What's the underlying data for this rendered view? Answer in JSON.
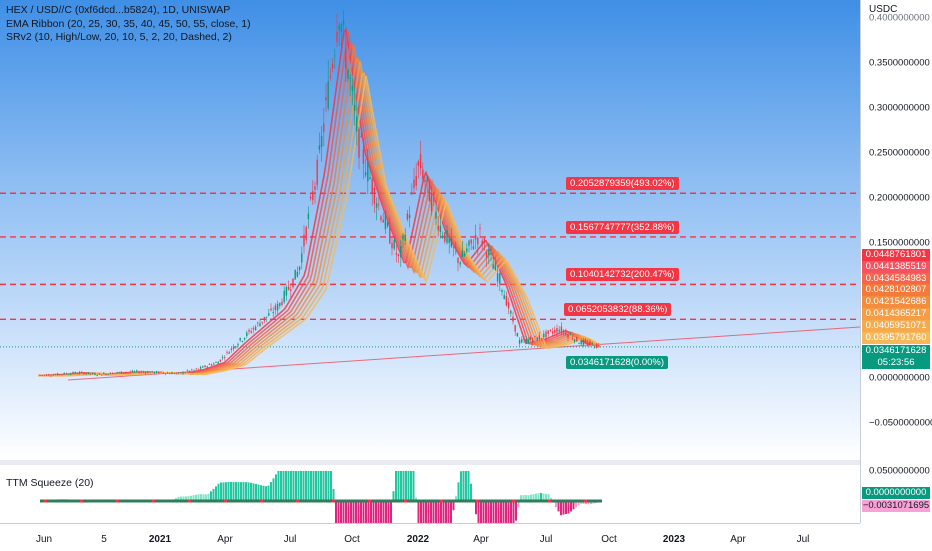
{
  "legend": {
    "symbol": "HEX / USD//C (0xf6dcd...b5824), 1D, UNISWAP",
    "ema": "EMA Ribbon (20, 25, 30, 35, 40, 45, 50, 55, close, 1)",
    "srv2": "SRv2 (10, High/Low, 20, 10, 5, 2, 20, Dashed, 2)"
  },
  "ttm": {
    "title": "TTM Squeeze (20)"
  },
  "price_axis": {
    "unit": "USDC",
    "ticks": [
      "0.4000000000",
      "0.3500000000",
      "0.3000000000",
      "0.2500000000",
      "0.2000000000",
      "0.1500000000",
      "0.0000000000",
      "−0.0500000000"
    ],
    "ttm_ticks": [
      "0.0500000000"
    ]
  },
  "price_tags": [
    {
      "label": "0.0448761801",
      "color": "#f23645"
    },
    {
      "label": "0.0441385519",
      "color": "#f7525f"
    },
    {
      "label": "0.0434584983",
      "color": "#f6664a"
    },
    {
      "label": "0.0428102807",
      "color": "#f47a3c"
    },
    {
      "label": "0.0421542686",
      "color": "#f48c3f"
    },
    {
      "label": "0.0414365217",
      "color": "#f59c45"
    },
    {
      "label": "0.0405951071",
      "color": "#f6aa4e"
    },
    {
      "label": "0.0395791760",
      "color": "#f7b85a"
    },
    {
      "label": "0.0346171628",
      "color": "#089981"
    },
    {
      "label": "05:23:56",
      "color": "#089981"
    }
  ],
  "ttm_tags": [
    {
      "label": "0.0000000000",
      "color": "#089981"
    },
    {
      "label": "−0.0031071695",
      "color": "#f7a1d6"
    }
  ],
  "sr_levels": [
    {
      "label": "0.2052879359(493.02%)",
      "value": 0.2052879359,
      "color": "#f23645"
    },
    {
      "label": "0.1567747777(352.88%)",
      "value": 0.1567747777,
      "color": "#f23645"
    },
    {
      "label": "0.1040142732(200.47%)",
      "value": 0.1040142732,
      "color": "#f23645"
    },
    {
      "label": "0.0652053832(88.36%)",
      "value": 0.0652053832,
      "color": "#f23645"
    }
  ],
  "support_tag": {
    "label": "0.0346171628(0.00%)",
    "color": "#089981"
  },
  "time_axis": [
    {
      "label": "Jun",
      "bold": false
    },
    {
      "label": "5",
      "bold": false
    },
    {
      "label": "2021",
      "bold": true
    },
    {
      "label": "Apr",
      "bold": false
    },
    {
      "label": "Jul",
      "bold": false
    },
    {
      "label": "Oct",
      "bold": false
    },
    {
      "label": "2022",
      "bold": true
    },
    {
      "label": "Apr",
      "bold": false
    },
    {
      "label": "Jul",
      "bold": false
    },
    {
      "label": "Oct",
      "bold": false
    },
    {
      "label": "2023",
      "bold": true
    },
    {
      "label": "Apr",
      "bold": false
    },
    {
      "label": "Jul",
      "bold": false
    }
  ],
  "chart_data": {
    "type": "line",
    "y_range": [
      -0.08,
      0.41
    ],
    "x": [
      "2020-06",
      "2020-07",
      "2020-08",
      "2020-09",
      "2020-10",
      "2020-11",
      "2020-12",
      "2021-01",
      "2021-02",
      "2021-03",
      "2021-04",
      "2021-05",
      "2021-06",
      "2021-07",
      "2021-08",
      "2021-09",
      "2021-10",
      "2021-11",
      "2021-12",
      "2022-01",
      "2022-02",
      "2022-03",
      "2022-04",
      "2022-05",
      "2022-06",
      "2022-07",
      "2022-08",
      "2022-09",
      "2022-10"
    ],
    "series": [
      {
        "values": [
          0.003,
          0.004,
          0.006,
          0.004,
          0.006,
          0.007,
          0.006,
          0.005,
          0.01,
          0.018,
          0.04,
          0.06,
          0.08,
          0.12,
          0.24,
          0.41,
          0.26,
          0.19,
          0.13,
          0.24,
          0.17,
          0.13,
          0.16,
          0.11,
          0.04,
          0.045,
          0.055,
          0.04,
          0.035
        ]
      }
    ],
    "sr_levels": [
      0.2052879359,
      0.1567747777,
      0.1040142732,
      0.0652053832
    ],
    "last_price": 0.0346171628,
    "legend": "top-left",
    "grid": false
  }
}
